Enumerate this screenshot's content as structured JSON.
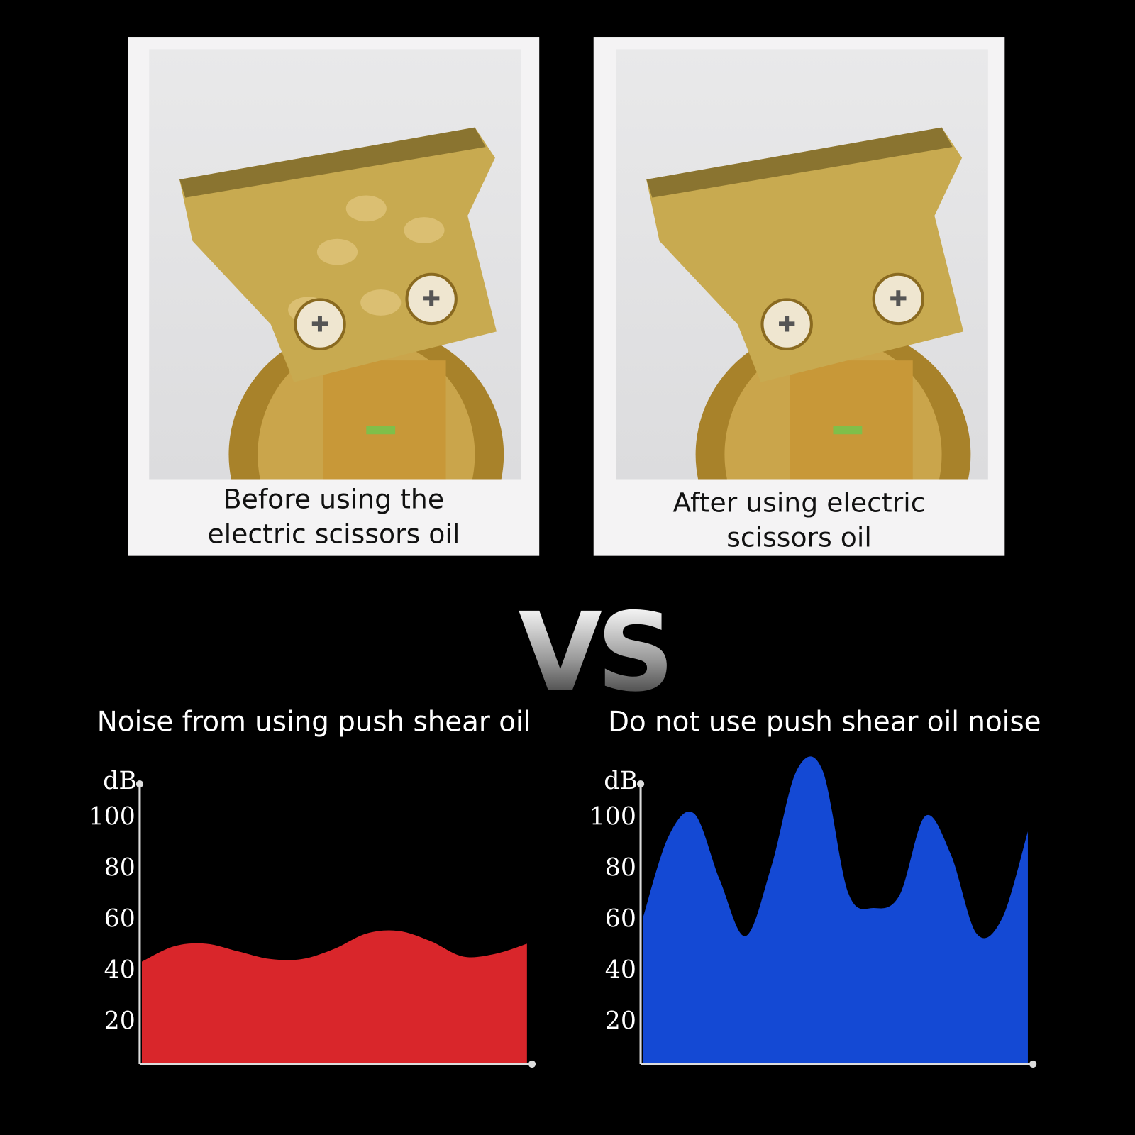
{
  "panels": [
    {
      "caption_line1": "Before using the",
      "caption_line2": "electric scissors oil",
      "state": "stained blade"
    },
    {
      "caption_line1": "After using electric",
      "caption_line2": "scissors oil",
      "state": "clean blade"
    }
  ],
  "vs_label": "VS",
  "chart_data": [
    {
      "type": "area",
      "title": "Noise from using push shear oil",
      "ylabel": "dB",
      "yticks": [
        20,
        40,
        60,
        80,
        100
      ],
      "ylim": [
        0,
        110
      ],
      "color": "#d9262b",
      "values": [
        43,
        49,
        50,
        47,
        44,
        44,
        48,
        54,
        55,
        51,
        45,
        46,
        50
      ]
    },
    {
      "type": "area",
      "title": "Do not use push shear oil noise",
      "ylabel": "dB",
      "yticks": [
        20,
        40,
        60,
        80,
        100
      ],
      "ylim": [
        0,
        110
      ],
      "color": "#1449d4",
      "values": [
        60,
        92,
        101,
        75,
        53,
        80,
        118,
        118,
        70,
        64,
        69,
        100,
        85,
        54,
        60,
        94
      ]
    }
  ]
}
